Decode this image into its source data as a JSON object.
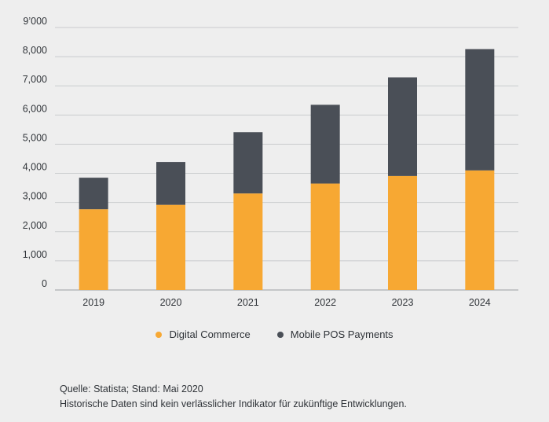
{
  "chart_data": {
    "type": "bar",
    "stacked": true,
    "categories": [
      "2019",
      "2020",
      "2021",
      "2022",
      "2023",
      "2024"
    ],
    "series": [
      {
        "name": "Digital Commerce",
        "color": "#f7a833",
        "values": [
          2770,
          2920,
          3310,
          3650,
          3910,
          4100
        ]
      },
      {
        "name": "Mobile POS Payments",
        "color": "#4a4f57",
        "values": [
          1080,
          1470,
          2100,
          2700,
          3380,
          4160
        ]
      }
    ],
    "ylim": [
      0,
      9000
    ],
    "yticks": [
      {
        "value": 0,
        "label": "0"
      },
      {
        "value": 1000,
        "label": "1,000"
      },
      {
        "value": 2000,
        "label": "2,000"
      },
      {
        "value": 3000,
        "label": "3,000"
      },
      {
        "value": 4000,
        "label": "4,000"
      },
      {
        "value": 5000,
        "label": "5,000"
      },
      {
        "value": 6000,
        "label": "6,000"
      },
      {
        "value": 7000,
        "label": "7,000"
      },
      {
        "value": 8000,
        "label": "8,000"
      },
      {
        "value": 9000,
        "label": "9’000"
      }
    ],
    "title": "",
    "xlabel": "",
    "ylabel": "",
    "grid": true,
    "legend_position": "bottom-center"
  },
  "legend": {
    "digital_commerce": "Digital Commerce",
    "mobile_pos": "Mobile POS Payments"
  },
  "source": {
    "line1": "Quelle: Statista; Stand: Mai 2020",
    "line2": "Historische Daten sind kein verlässlicher Indikator für zukünftige Entwicklungen."
  }
}
